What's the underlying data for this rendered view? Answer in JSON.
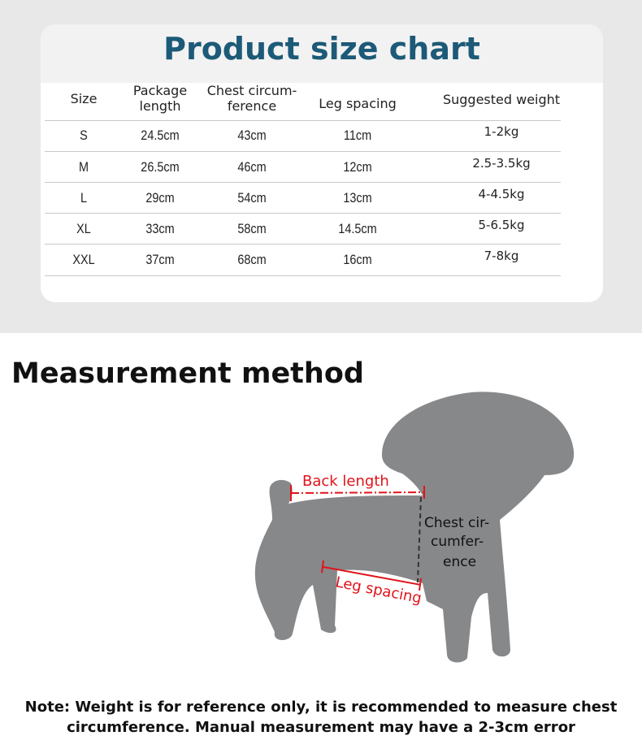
{
  "size_chart": {
    "title": "Product size chart",
    "headers": [
      "Size",
      "Package\nlength",
      "Chest circum-\nference",
      "Leg spacing",
      "Suggested weight"
    ],
    "rows": [
      {
        "size": "S",
        "package_length": "24.5cm",
        "chest": "43cm",
        "leg_spacing": "11cm",
        "weight": "1-2kg"
      },
      {
        "size": "M",
        "package_length": "26.5cm",
        "chest": "46cm",
        "leg_spacing": "12cm",
        "weight": "2.5-3.5kg"
      },
      {
        "size": "L",
        "package_length": "29cm",
        "chest": "54cm",
        "leg_spacing": "13cm",
        "weight": "4-4.5kg"
      },
      {
        "size": "XL",
        "package_length": "33cm",
        "chest": "58cm",
        "leg_spacing": "14.5cm",
        "weight": "5-6.5kg"
      },
      {
        "size": "XXL",
        "package_length": "37cm",
        "chest": "68cm",
        "leg_spacing": "16cm",
        "weight": "7-8kg"
      }
    ]
  },
  "measurement": {
    "title": "Measurement method",
    "back_length": "Back length",
    "chest_lines": [
      "Chest cir-",
      "cumfer-",
      "ence"
    ],
    "leg_spacing": "Leg spacing",
    "colors": {
      "silhouette": "#87888a",
      "annotation": "#e0141b",
      "title": "#1c5a78"
    }
  },
  "note": {
    "line1": "Note: Weight is for reference only, it is recommended to measure chest",
    "line2": "circumference. Manual measurement may have a 2-3cm error"
  }
}
